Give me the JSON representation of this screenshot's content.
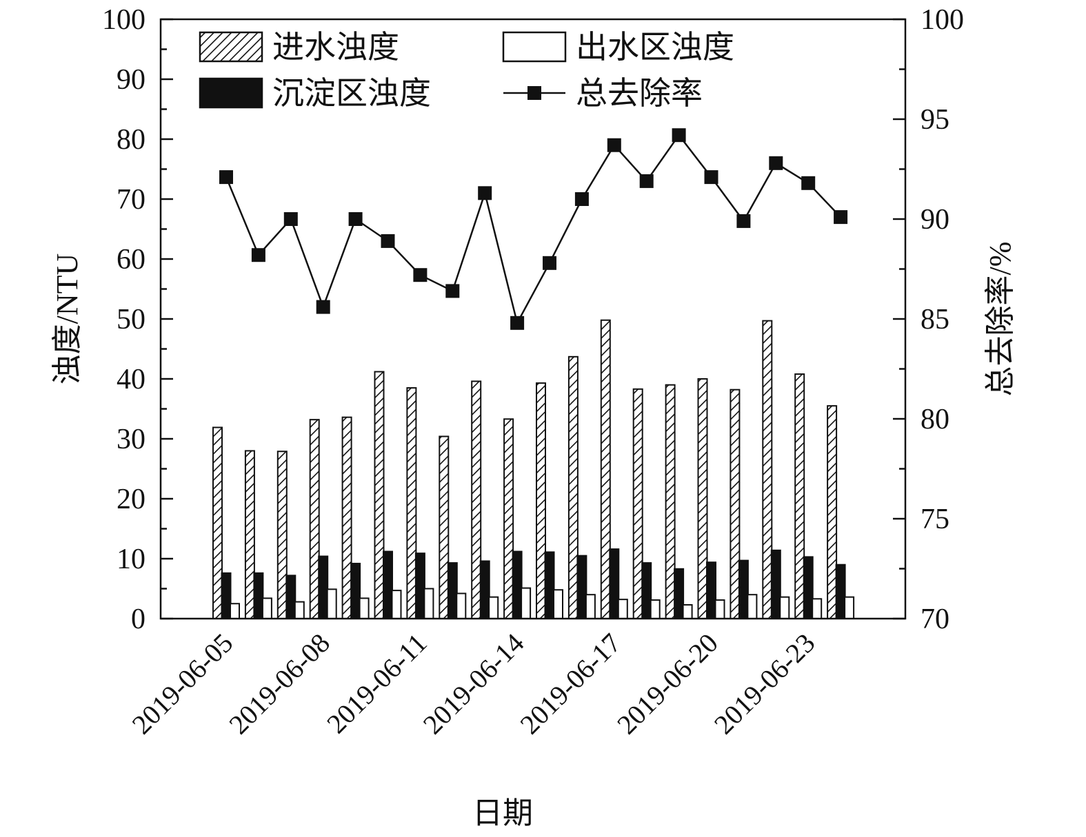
{
  "chart_data": {
    "type": "bar",
    "categories": [
      "2019-06-05",
      "2019-06-06",
      "2019-06-07",
      "2019-06-08",
      "2019-06-09",
      "2019-06-10",
      "2019-06-11",
      "2019-06-12",
      "2019-06-13",
      "2019-06-14",
      "2019-06-15",
      "2019-06-16",
      "2019-06-17",
      "2019-06-18",
      "2019-06-19",
      "2019-06-20",
      "2019-06-21",
      "2019-06-22",
      "2019-06-23",
      "2019-06-24"
    ],
    "x_tick_labels": [
      "2019-06-05",
      "2019-06-08",
      "2019-06-11",
      "2019-06-14",
      "2019-06-17",
      "2019-06-20",
      "2019-06-23"
    ],
    "xlabel": "日期",
    "ylabel": "浊度/NTU",
    "y2label": "总去除率/%",
    "ylim": [
      0,
      100
    ],
    "yticks": [
      0,
      10,
      20,
      30,
      40,
      50,
      60,
      70,
      80,
      90,
      100
    ],
    "y2lim": [
      70,
      100
    ],
    "y2ticks": [
      70,
      75,
      80,
      85,
      90,
      95,
      100
    ],
    "legend_position": "top",
    "grid": false,
    "series": [
      {
        "name": "进水浊度",
        "kind": "bar",
        "pattern": "hatch",
        "axis": "left",
        "values": [
          31.9,
          28.0,
          27.9,
          33.2,
          33.6,
          41.2,
          38.5,
          30.4,
          39.6,
          33.3,
          39.3,
          43.7,
          49.8,
          38.3,
          39.0,
          40.0,
          38.2,
          49.7,
          40.8,
          35.5
        ]
      },
      {
        "name": "沉淀区浊度",
        "kind": "bar",
        "pattern": "solid-black",
        "axis": "left",
        "values": [
          7.6,
          7.6,
          7.2,
          10.4,
          9.2,
          11.2,
          10.9,
          9.3,
          9.6,
          11.2,
          11.1,
          10.5,
          11.6,
          9.3,
          8.3,
          9.4,
          9.7,
          11.4,
          10.3,
          9.0
        ]
      },
      {
        "name": "出水区浊度",
        "kind": "bar",
        "pattern": "open",
        "axis": "left",
        "values": [
          2.5,
          3.4,
          2.8,
          4.9,
          3.4,
          4.7,
          5.0,
          4.2,
          3.6,
          5.1,
          4.8,
          4.0,
          3.2,
          3.1,
          2.3,
          3.1,
          4.0,
          3.6,
          3.3,
          3.6
        ]
      },
      {
        "name": "总去除率",
        "kind": "line",
        "marker": "square",
        "axis": "right",
        "values": [
          92.1,
          88.2,
          90.0,
          85.6,
          90.0,
          88.9,
          87.2,
          86.4,
          91.3,
          84.8,
          87.8,
          91.0,
          93.7,
          91.9,
          94.2,
          92.1,
          89.9,
          92.8,
          91.8,
          90.1
        ]
      }
    ]
  }
}
